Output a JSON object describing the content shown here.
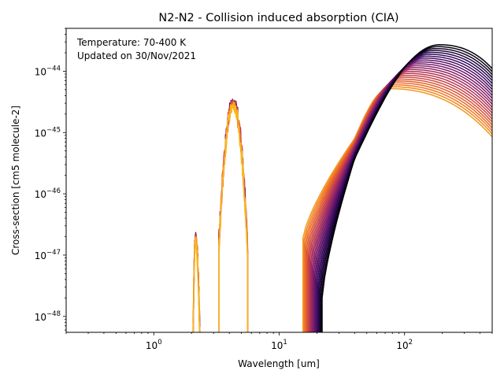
{
  "chart_data": {
    "type": "line",
    "title": "N2-N2 - Collision induced absorption (CIA)",
    "xlabel": "Wavelength [um]",
    "ylabel": "Cross-section [cm5 molecule-2]",
    "x_scale": "log",
    "y_scale": "log",
    "xlim": [
      0.2,
      500
    ],
    "ylim": [
      5.5e-49,
      5e-44
    ],
    "grid": false,
    "annotation_lines": [
      "Temperature: 70-400 K",
      "Updated on 30/Nov/2021"
    ],
    "x_ticks": [
      {
        "value": 1,
        "base": "10",
        "exp": "0"
      },
      {
        "value": 10,
        "base": "10",
        "exp": "1"
      },
      {
        "value": 100,
        "base": "10",
        "exp": "2"
      }
    ],
    "y_ticks": [
      {
        "value": 1e-48,
        "base": "10",
        "exp": "−48"
      },
      {
        "value": 1e-47,
        "base": "10",
        "exp": "−47"
      },
      {
        "value": 1e-46,
        "base": "10",
        "exp": "−46"
      },
      {
        "value": 1e-45,
        "base": "10",
        "exp": "−45"
      },
      {
        "value": 1e-44,
        "base": "10",
        "exp": "−44"
      }
    ],
    "colormap": [
      "#000004",
      "#320a5e",
      "#781c6d",
      "#bc3754",
      "#ed6925",
      "#fbb61a"
    ],
    "far_ir_band": {
      "temperatures_K": [
        70,
        80,
        90,
        100,
        110,
        120,
        130,
        140,
        150,
        160,
        170,
        180,
        190,
        200,
        220,
        240,
        260,
        280,
        300,
        320,
        340,
        360,
        380,
        400
      ],
      "x_start_cold": 22,
      "x_start_hot": 15.5,
      "start_y_cold": 2e-48,
      "start_y_hot": 1.9e-47,
      "peak_x_cold": 190,
      "peak_x_hot": 75,
      "peak_y_cold": 2.7e-44,
      "peak_y_hot": 5.2e-45,
      "end_x": 500,
      "end_y_cold": 1.1e-44,
      "end_y_hot": 8.5e-46,
      "shoulder_x": 40,
      "shoulder_y_hot": 8e-46
    },
    "fundamental_band": {
      "x_range": [
        3.3,
        5.6
      ],
      "peak_x": 4.3,
      "peak_y": 3.2e-45,
      "colors": [
        "#781c6d",
        "#bc3754",
        "#ed6925",
        "#fbb61a"
      ]
    },
    "overtone_band": {
      "x_range": [
        2.05,
        2.35
      ],
      "peak_x": 2.15,
      "peak_y": 2e-47,
      "colors": [
        "#781c6d",
        "#bc3754",
        "#ed6925",
        "#fbb61a"
      ]
    }
  }
}
